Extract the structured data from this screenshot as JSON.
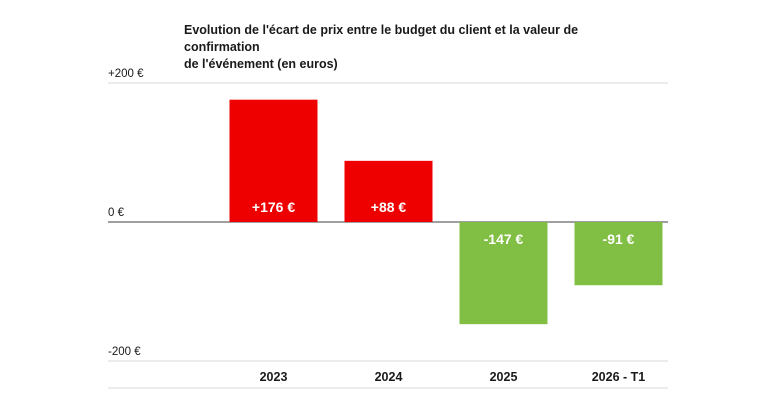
{
  "chart_data": {
    "type": "bar",
    "title_lines": [
      "Evolution de l'écart de prix entre le budget du client et la valeur de confirmation",
      "de l'événement (en euros)"
    ],
    "categories": [
      "2023",
      "2024",
      "2025",
      "2026 - T1"
    ],
    "values": [
      176,
      88,
      -147,
      -91
    ],
    "value_labels": [
      "+176 €",
      "+88 €",
      "-147 €",
      "-91 €"
    ],
    "y_ticks": [
      {
        "value": 200,
        "label": "+200 €"
      },
      {
        "value": 0,
        "label": "0 €"
      },
      {
        "value": -200,
        "label": "-200 €"
      }
    ],
    "ylim": [
      -200,
      200
    ],
    "colors": {
      "positive": "#ee0000",
      "negative": "#80bf44",
      "axis": "#666666",
      "grid": "#d9d9d9"
    },
    "grid": true,
    "legend": "none"
  }
}
